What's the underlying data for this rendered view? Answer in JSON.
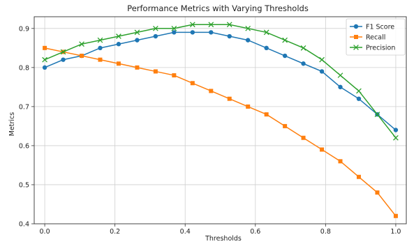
{
  "chart_data": {
    "type": "line",
    "title": "Performance Metrics with Varying Thresholds",
    "xlabel": "Thresholds",
    "ylabel": "Metrics",
    "xlim": [
      -0.03,
      1.03
    ],
    "ylim": [
      0.4,
      0.93
    ],
    "xticks": [
      0.0,
      0.2,
      0.4,
      0.6,
      0.8,
      1.0
    ],
    "xtick_labels": [
      "0.0",
      "0.2",
      "0.4",
      "0.6",
      "0.8",
      "1.0"
    ],
    "yticks": [
      0.4,
      0.5,
      0.6,
      0.7,
      0.8,
      0.9
    ],
    "ytick_labels": [
      "0.4",
      "0.5",
      "0.6",
      "0.7",
      "0.8",
      "0.9"
    ],
    "grid": true,
    "legend_position": "top-right",
    "x": [
      0.0,
      0.0526,
      0.1053,
      0.1579,
      0.2105,
      0.2632,
      0.3158,
      0.3684,
      0.4211,
      0.4737,
      0.5263,
      0.5789,
      0.6316,
      0.6842,
      0.7368,
      0.7895,
      0.8421,
      0.8947,
      0.9474,
      1.0
    ],
    "series": [
      {
        "name": "F1 Score",
        "color": "#1f77b4",
        "marker": "circle",
        "values": [
          0.8,
          0.82,
          0.83,
          0.85,
          0.86,
          0.87,
          0.88,
          0.89,
          0.89,
          0.89,
          0.88,
          0.87,
          0.85,
          0.83,
          0.81,
          0.79,
          0.75,
          0.72,
          0.68,
          0.64
        ]
      },
      {
        "name": "Recall",
        "color": "#ff7f0e",
        "marker": "square",
        "values": [
          0.85,
          0.84,
          0.83,
          0.82,
          0.81,
          0.8,
          0.79,
          0.78,
          0.76,
          0.74,
          0.72,
          0.7,
          0.68,
          0.65,
          0.62,
          0.59,
          0.56,
          0.52,
          0.48,
          0.42
        ]
      },
      {
        "name": "Precision",
        "color": "#2ca02c",
        "marker": "x",
        "values": [
          0.82,
          0.84,
          0.86,
          0.87,
          0.88,
          0.89,
          0.9,
          0.9,
          0.91,
          0.91,
          0.91,
          0.9,
          0.89,
          0.87,
          0.85,
          0.82,
          0.78,
          0.74,
          0.68,
          0.62
        ]
      }
    ]
  }
}
